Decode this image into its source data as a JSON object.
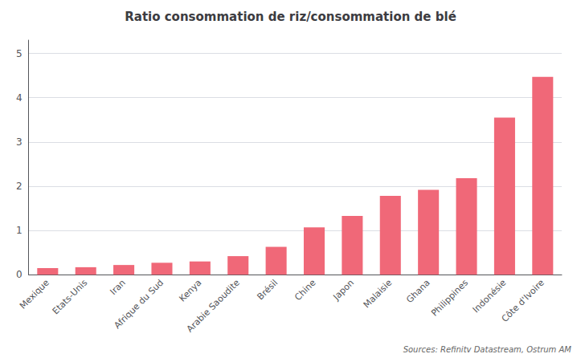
{
  "chart_data": {
    "type": "bar",
    "title": "Ratio consommation de riz/consommation de blé",
    "categories": [
      "Mexique",
      "Etats-Unis",
      "Iran",
      "Afrique du Sud",
      "Kenya",
      "Arabie Saoudite",
      "Brésil",
      "Chine",
      "Japon",
      "Malaisie",
      "Ghana",
      "Philippines",
      "Indonésie",
      "Côte d'Ivoire"
    ],
    "values": [
      0.15,
      0.17,
      0.22,
      0.27,
      0.3,
      0.42,
      0.63,
      1.07,
      1.33,
      1.78,
      1.92,
      2.18,
      3.55,
      4.47
    ],
    "color": "#F06878",
    "ylim": [
      0,
      5.3
    ],
    "yticks": [
      0,
      1,
      2,
      3,
      4,
      5
    ],
    "grid": true,
    "annotation": "Sources: Refinitv Datastream, Ostrum AM"
  }
}
